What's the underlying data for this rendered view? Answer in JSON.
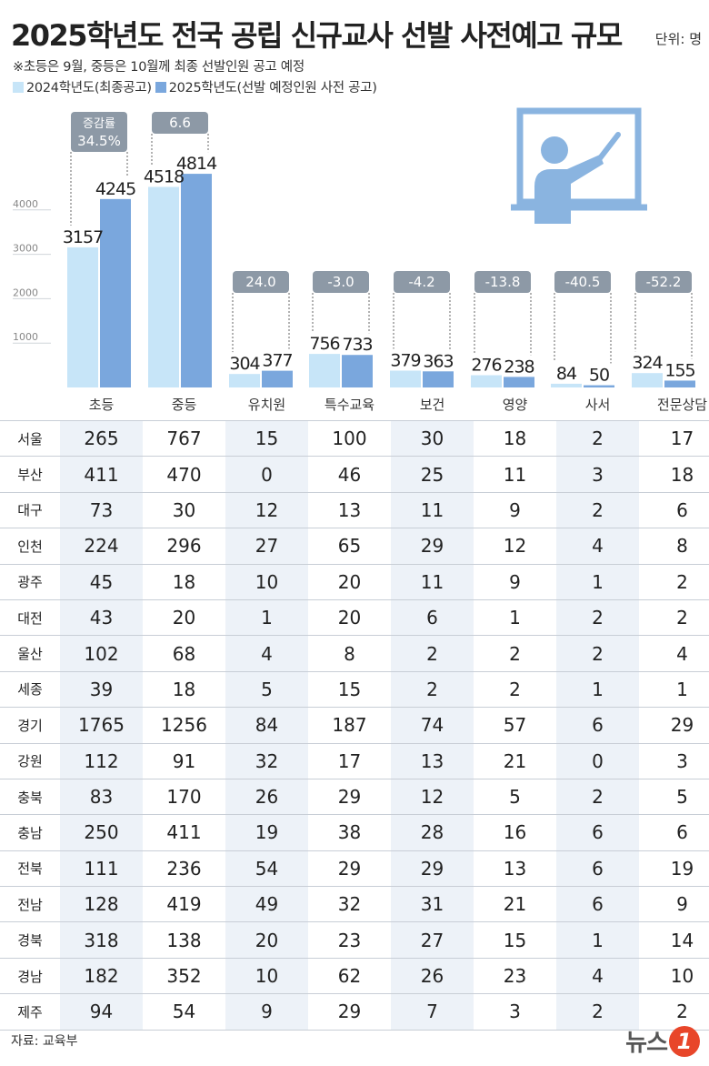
{
  "title": "2025학년도 전국 공립 신규교사 선발 사전예고 규모",
  "unit": "단위: 명",
  "note": "※초등은 9월, 중등은 10월께 최종 선발인원 공고 예정",
  "legend": {
    "series1": "2024학년도(최종공고)",
    "series2": "2025학년도(선발 예정인원 사전 공고)"
  },
  "chart_data": {
    "type": "bar",
    "categories": [
      "초등",
      "중등",
      "유치원",
      "특수교육",
      "보건",
      "영양",
      "사서",
      "전문상담"
    ],
    "series": [
      {
        "name": "2024학년도(최종공고)",
        "values": [
          3157,
          4518,
          304,
          756,
          379,
          276,
          84,
          324
        ]
      },
      {
        "name": "2025학년도(선발 예정인원 사전 공고)",
        "values": [
          4245,
          4814,
          377,
          733,
          363,
          238,
          50,
          155
        ]
      }
    ],
    "change_labels": [
      "34.5%",
      "6.6",
      "24.0",
      "-3.0",
      "-4.2",
      "-13.8",
      "-40.5",
      "-52.2"
    ],
    "change_caption": "증감률",
    "yticks": [
      1000,
      2000,
      3000,
      4000
    ],
    "ylim": [
      0,
      5500
    ],
    "colors": {
      "series1": "#c7e5f8",
      "series2": "#7aa7dd",
      "change_box": "#8d99a6"
    }
  },
  "table": {
    "headers": [
      "",
      "초등",
      "중등",
      "유치원",
      "특수교육",
      "보건",
      "영양",
      "사서",
      "전문상담"
    ],
    "rows": [
      [
        "서울",
        "265",
        "767",
        "15",
        "100",
        "30",
        "18",
        "2",
        "17"
      ],
      [
        "부산",
        "411",
        "470",
        "0",
        "46",
        "25",
        "11",
        "3",
        "18"
      ],
      [
        "대구",
        "73",
        "30",
        "12",
        "13",
        "11",
        "9",
        "2",
        "6"
      ],
      [
        "인천",
        "224",
        "296",
        "27",
        "65",
        "29",
        "12",
        "4",
        "8"
      ],
      [
        "광주",
        "45",
        "18",
        "10",
        "20",
        "11",
        "9",
        "1",
        "2"
      ],
      [
        "대전",
        "43",
        "20",
        "1",
        "20",
        "6",
        "1",
        "2",
        "2"
      ],
      [
        "울산",
        "102",
        "68",
        "4",
        "8",
        "2",
        "2",
        "2",
        "4"
      ],
      [
        "세종",
        "39",
        "18",
        "5",
        "15",
        "2",
        "2",
        "1",
        "1"
      ],
      [
        "경기",
        "1765",
        "1256",
        "84",
        "187",
        "74",
        "57",
        "6",
        "29"
      ],
      [
        "강원",
        "112",
        "91",
        "32",
        "17",
        "13",
        "21",
        "0",
        "3"
      ],
      [
        "충북",
        "83",
        "170",
        "26",
        "29",
        "12",
        "5",
        "2",
        "5"
      ],
      [
        "충남",
        "250",
        "411",
        "19",
        "38",
        "28",
        "16",
        "6",
        "6"
      ],
      [
        "전북",
        "111",
        "236",
        "54",
        "29",
        "29",
        "13",
        "6",
        "19"
      ],
      [
        "전남",
        "128",
        "419",
        "49",
        "32",
        "31",
        "21",
        "6",
        "9"
      ],
      [
        "경북",
        "318",
        "138",
        "20",
        "23",
        "27",
        "15",
        "1",
        "14"
      ],
      [
        "경남",
        "182",
        "352",
        "10",
        "62",
        "26",
        "23",
        "4",
        "10"
      ],
      [
        "제주",
        "94",
        "54",
        "9",
        "29",
        "7",
        "3",
        "2",
        "2"
      ]
    ]
  },
  "source": "자료: 교육부",
  "logo": {
    "text": "뉴스",
    "badge": "1"
  },
  "icon": "teacher-at-board-icon"
}
